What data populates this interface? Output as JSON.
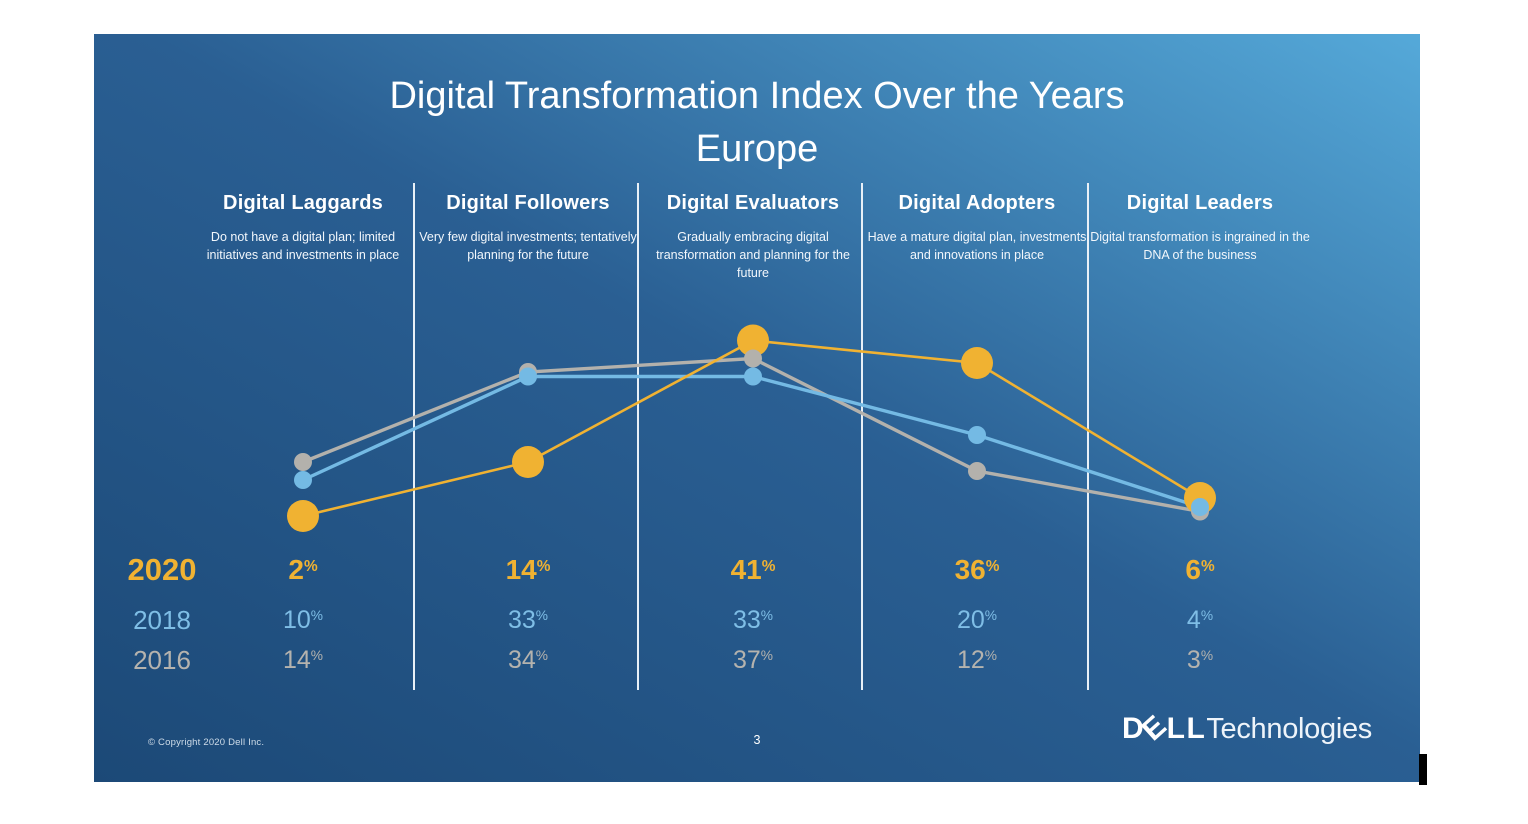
{
  "slide": {
    "title_line1": "Digital Transformation Index Over the Years",
    "title_line2": "Europe"
  },
  "categories": [
    {
      "title": "Digital Laggards",
      "description": "Do not have a digital plan; limited initiatives and investments in place"
    },
    {
      "title": "Digital Followers",
      "description": "Very few digital investments; tentatively planning for the future"
    },
    {
      "title": "Digital Evaluators",
      "description": "Gradually embracing digital transformation and planning for the future"
    },
    {
      "title": "Digital Adopters",
      "description": "Have a mature digital plan, investments and innovations in place"
    },
    {
      "title": "Digital Leaders",
      "description": "Digital transformation is ingrained in the DNA of the business"
    }
  ],
  "chart_data": {
    "type": "line",
    "title": "Digital Transformation Index Over the Years — Europe",
    "categories": [
      "Digital Laggards",
      "Digital Followers",
      "Digital Evaluators",
      "Digital Adopters",
      "Digital Leaders"
    ],
    "unit": "%",
    "series": [
      {
        "name": "2020",
        "color": "#F0B232",
        "values": [
          2,
          14,
          41,
          36,
          6
        ],
        "emphasis": true
      },
      {
        "name": "2018",
        "color": "#74BAE4",
        "values": [
          10,
          33,
          33,
          20,
          4
        ],
        "emphasis": false
      },
      {
        "name": "2016",
        "color": "#B3B1AC",
        "values": [
          14,
          34,
          37,
          12,
          3
        ],
        "emphasis": false
      }
    ],
    "ylim": [
      0,
      45
    ],
    "grid": false,
    "legend_position": "left-of-value-rows",
    "value_labels_shown_as_rows": true
  },
  "footer": {
    "copyright": "© Copyright 2020 Dell Inc.",
    "page_number": "3",
    "logo": {
      "dell_prefix": "D",
      "dell_e": "E",
      "dell_suffix": "LL",
      "technologies": "Technologies"
    }
  },
  "colors": {
    "background_bottom_left": "#1C4977",
    "background_mid": "#2A5F93",
    "background_top_right": "#55A9D9",
    "accent_2020": "#F0B232",
    "accent_2018": "#7FBEE6",
    "accent_2016": "#B5B3AE",
    "divider": "#E8F0F7",
    "title_text": "#FFFFFF"
  }
}
